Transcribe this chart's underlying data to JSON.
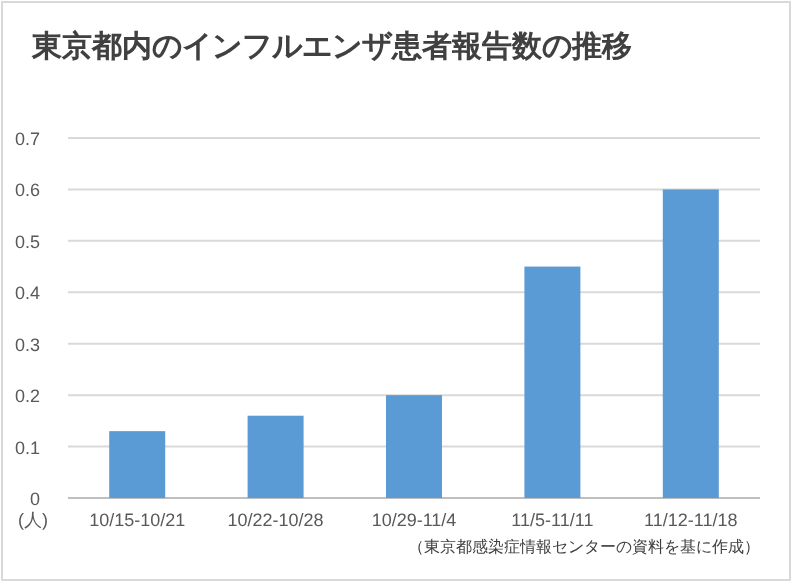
{
  "chart_data": {
    "type": "bar",
    "title": "東京都内のインフルエンザ患者報告数の推移",
    "ylabel": "(人)",
    "categories": [
      "10/15-10/21",
      "10/22-10/28",
      "10/29-11/4",
      "11/5-11/11",
      "11/12-11/18"
    ],
    "values": [
      0.13,
      0.16,
      0.2,
      0.45,
      0.6
    ],
    "color": "#5b9bd5",
    "ylim": [
      0,
      0.7
    ],
    "yticks": [
      0,
      0.1,
      0.2,
      0.3,
      0.4,
      0.5,
      0.6,
      0.7
    ],
    "grid": "y",
    "annotations": [
      "（東京都感染症情報センターの資料を基に作成）"
    ]
  }
}
